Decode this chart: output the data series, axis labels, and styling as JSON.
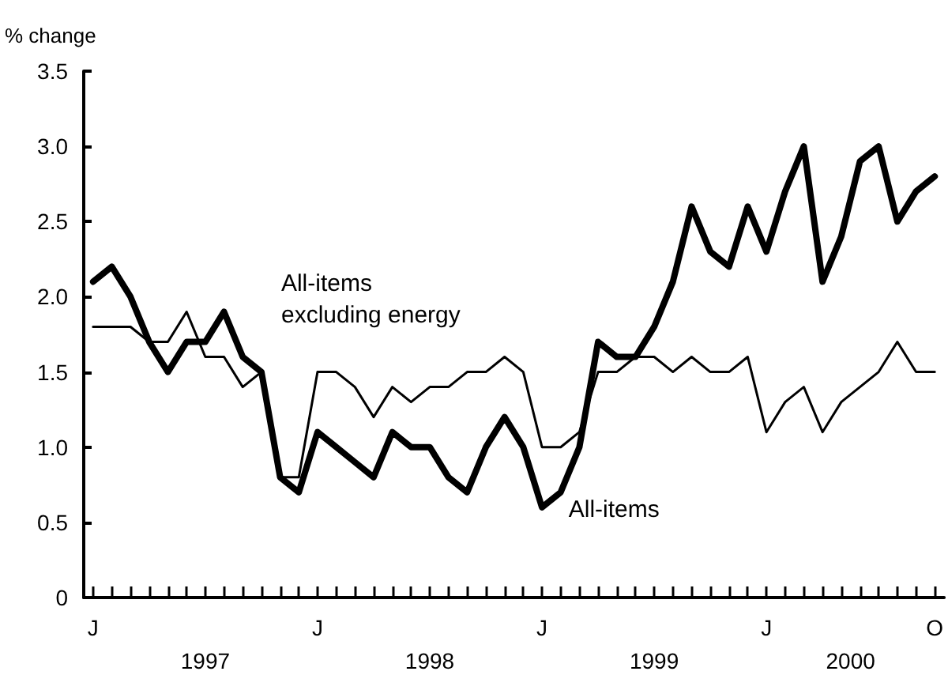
{
  "chart_data": {
    "type": "line",
    "ylabel": "% change",
    "categories": [
      "J",
      null,
      null,
      null,
      null,
      null,
      null,
      null,
      null,
      null,
      null,
      null,
      "J",
      null,
      null,
      null,
      null,
      null,
      null,
      null,
      null,
      null,
      null,
      null,
      "J",
      null,
      null,
      null,
      null,
      null,
      null,
      null,
      null,
      null,
      null,
      null,
      "J",
      null,
      null,
      null,
      null,
      null,
      null,
      null,
      null,
      "O"
    ],
    "series": [
      {
        "name": "All-items\nexcluding energy",
        "color": "#000000",
        "values": [
          1.8,
          1.8,
          1.8,
          1.7,
          1.7,
          1.9,
          1.6,
          1.6,
          1.4,
          1.5,
          0.8,
          0.8,
          1.5,
          1.5,
          1.4,
          1.2,
          1.4,
          1.3,
          1.4,
          1.4,
          1.5,
          1.5,
          1.6,
          1.5,
          1.0,
          1.0,
          1.1,
          1.5,
          1.5,
          1.6,
          1.6,
          1.5,
          1.6,
          1.5,
          1.5,
          1.6,
          1.1,
          1.3,
          1.4,
          1.1,
          1.3,
          1.4,
          1.5,
          1.7,
          1.5,
          1.5
        ]
      },
      {
        "name": "All-items",
        "color": "#000000",
        "values": [
          2.1,
          2.2,
          2.0,
          1.7,
          1.5,
          1.7,
          1.7,
          1.9,
          1.6,
          1.5,
          0.8,
          0.7,
          1.1,
          1.0,
          0.9,
          0.8,
          1.1,
          1.0,
          1.0,
          0.8,
          0.7,
          1.0,
          1.2,
          1.0,
          0.6,
          0.7,
          1.0,
          1.7,
          1.6,
          1.6,
          1.8,
          2.1,
          2.6,
          2.3,
          2.2,
          2.6,
          2.3,
          2.7,
          3.0,
          2.1,
          2.4,
          2.9,
          3.0,
          2.5,
          2.7,
          2.8
        ]
      }
    ],
    "annotations": [
      "1997",
      "1998",
      "1999",
      "2000"
    ],
    "ylim": [
      0,
      3.5
    ],
    "yticks": [
      0,
      {
        "value": 0.5,
        "label": "0.5"
      },
      {
        "value": 1,
        "label": "1.0"
      },
      {
        "value": 1.5,
        "label": "1.5"
      },
      {
        "value": 2,
        "label": "2.0"
      },
      {
        "value": 2.5,
        "label": "2.5"
      },
      {
        "value": 3,
        "label": "3.0"
      },
      {
        "value": 3.5,
        "label": "3.5"
      }
    ],
    "grid": false,
    "legend": false,
    "marker": "none",
    "line_style": "solid"
  }
}
